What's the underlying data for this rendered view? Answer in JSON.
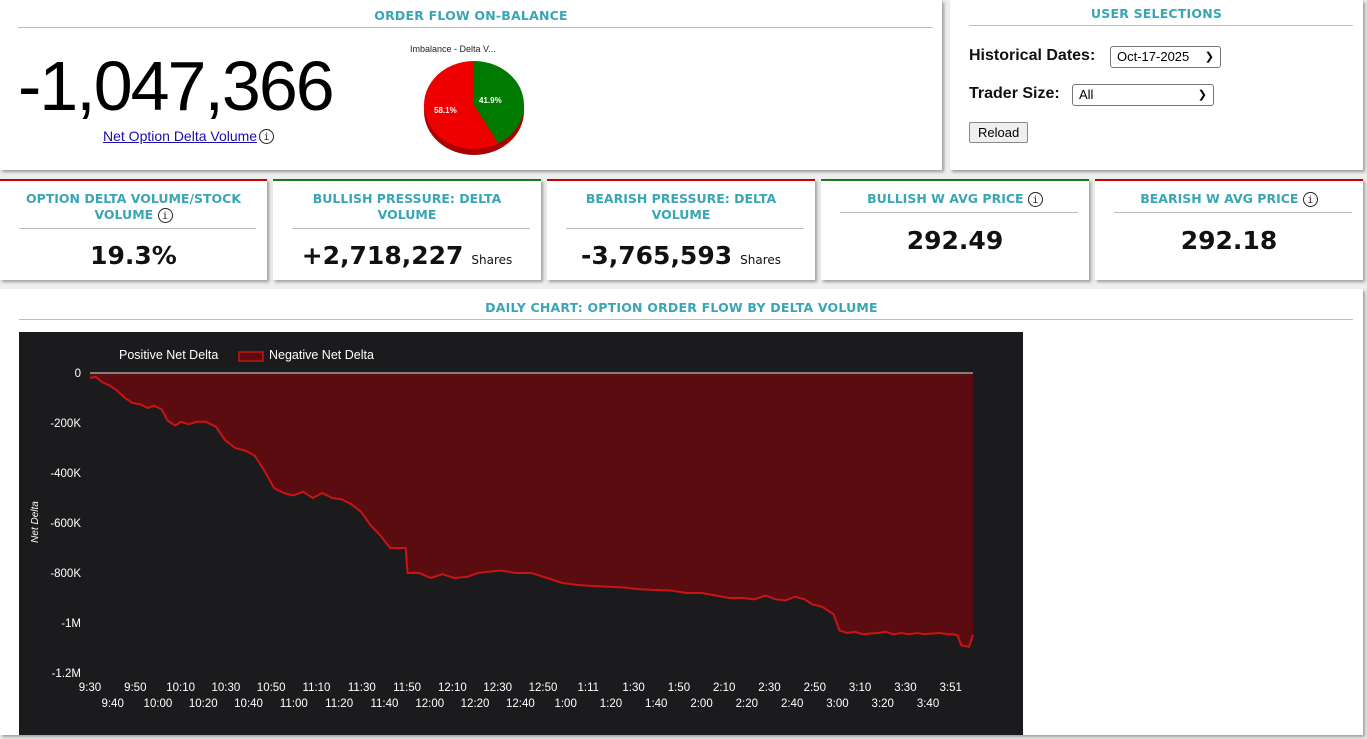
{
  "order_flow": {
    "title": "ORDER FLOW ON-BALANCE",
    "net_value": "-1,047,366",
    "net_label": "Net Option Delta Volume",
    "info_glyph": "i",
    "pie": {
      "title": "Imbalance - Delta V...",
      "slices": [
        {
          "label": "58.1%",
          "value": 58.1,
          "color": "#ee0000"
        },
        {
          "label": "41.9%",
          "value": 41.9,
          "color": "#007a00"
        }
      ]
    }
  },
  "user_selections": {
    "title": "USER SELECTIONS",
    "historical_dates_label": "Historical Dates:",
    "historical_dates_value": "Oct-17-2025",
    "trader_size_label": "Trader Size:",
    "trader_size_value": "All",
    "reload_label": "Reload"
  },
  "cards": [
    {
      "title": "OPTION DELTA VOLUME/STOCK VOLUME",
      "value": "19.3%",
      "unit": "",
      "top_color": "#cc0000",
      "info": true
    },
    {
      "title": "BULLISH PRESSURE: DELTA VOLUME",
      "value": "+2,718,227",
      "unit": "Shares",
      "top_color": "#1a7a1a",
      "info": false
    },
    {
      "title": "BEARISH PRESSURE: DELTA VOLUME",
      "value": "-3,765,593",
      "unit": "Shares",
      "top_color": "#cc0000",
      "info": false
    },
    {
      "title": "BULLISH W AVG PRICE",
      "value": "292.49",
      "unit": "",
      "top_color": "#1a7a1a",
      "info": true
    },
    {
      "title": "BEARISH W AVG PRICE",
      "value": "292.18",
      "unit": "",
      "top_color": "#cc0000",
      "info": true
    }
  ],
  "daily_chart": {
    "title": "DAILY CHART: OPTION ORDER FLOW BY DELTA VOLUME"
  },
  "chart_data": {
    "type": "area",
    "ylabel": "Net Delta",
    "legend": [
      "Positive Net Delta",
      "Negative Net Delta"
    ],
    "legend_placement": "top-left",
    "ylim": [
      -1200000,
      0
    ],
    "y_ticks": [
      "0",
      "-200K",
      "-400K",
      "-600K",
      "-800K",
      "-1M",
      "-1.2M"
    ],
    "x_ticks_row1": [
      "9:30",
      "9:50",
      "10:10",
      "10:30",
      "10:50",
      "11:10",
      "11:30",
      "11:50",
      "12:10",
      "12:30",
      "12:50",
      "1:11",
      "1:30",
      "1:50",
      "2:10",
      "2:30",
      "2:50",
      "3:10",
      "3:30",
      "3:51"
    ],
    "x_ticks_row2": [
      "9:40",
      "10:00",
      "10:20",
      "10:40",
      "11:00",
      "11:20",
      "11:40",
      "12:00",
      "12:20",
      "12:40",
      "1:00",
      "1:20",
      "1:40",
      "2:00",
      "2:20",
      "2:40",
      "3:00",
      "3:20",
      "3:40"
    ],
    "x_range_minutes": [
      0,
      387
    ],
    "series": [
      {
        "name": "Negative Net Delta",
        "color": "#c81414",
        "fill": "#5a0c10",
        "points": [
          [
            0,
            -20000
          ],
          [
            3,
            -15000
          ],
          [
            6,
            -35000
          ],
          [
            10,
            -50000
          ],
          [
            14,
            -70000
          ],
          [
            18,
            -100000
          ],
          [
            22,
            -120000
          ],
          [
            26,
            -125000
          ],
          [
            30,
            -140000
          ],
          [
            33,
            -130000
          ],
          [
            37,
            -145000
          ],
          [
            40,
            -190000
          ],
          [
            44,
            -210000
          ],
          [
            47,
            -195000
          ],
          [
            51,
            -205000
          ],
          [
            55,
            -195000
          ],
          [
            60,
            -195000
          ],
          [
            65,
            -215000
          ],
          [
            70,
            -270000
          ],
          [
            75,
            -300000
          ],
          [
            80,
            -310000
          ],
          [
            85,
            -330000
          ],
          [
            90,
            -390000
          ],
          [
            95,
            -460000
          ],
          [
            100,
            -480000
          ],
          [
            105,
            -490000
          ],
          [
            110,
            -475000
          ],
          [
            115,
            -500000
          ],
          [
            120,
            -480000
          ],
          [
            125,
            -500000
          ],
          [
            130,
            -505000
          ],
          [
            135,
            -525000
          ],
          [
            140,
            -555000
          ],
          [
            145,
            -610000
          ],
          [
            150,
            -650000
          ],
          [
            155,
            -700000
          ],
          [
            160,
            -700000
          ],
          [
            163,
            -700000
          ],
          [
            164,
            -800000
          ],
          [
            170,
            -800000
          ],
          [
            176,
            -820000
          ],
          [
            182,
            -805000
          ],
          [
            188,
            -820000
          ],
          [
            195,
            -815000
          ],
          [
            200,
            -800000
          ],
          [
            206,
            -795000
          ],
          [
            212,
            -790000
          ],
          [
            220,
            -800000
          ],
          [
            228,
            -800000
          ],
          [
            236,
            -820000
          ],
          [
            244,
            -840000
          ],
          [
            252,
            -848000
          ],
          [
            260,
            -852000
          ],
          [
            268,
            -855000
          ],
          [
            276,
            -858000
          ],
          [
            284,
            -865000
          ],
          [
            292,
            -868000
          ],
          [
            300,
            -870000
          ],
          [
            308,
            -880000
          ],
          [
            316,
            -880000
          ],
          [
            323,
            -890000
          ],
          [
            330,
            -900000
          ],
          [
            337,
            -900000
          ],
          [
            343,
            -905000
          ],
          [
            349,
            -890000
          ],
          [
            354,
            -905000
          ],
          [
            359,
            -910000
          ],
          [
            364,
            -895000
          ],
          [
            369,
            -905000
          ],
          [
            373,
            -925000
          ],
          [
            378,
            -935000
          ],
          [
            381,
            -950000
          ],
          [
            384,
            -965000
          ],
          [
            387,
            -1030000
          ],
          [
            391,
            -1040000
          ],
          [
            395,
            -1035000
          ],
          [
            399,
            -1045000
          ],
          [
            403,
            -1042000
          ],
          [
            407,
            -1040000
          ],
          [
            411,
            -1035000
          ],
          [
            415,
            -1045000
          ],
          [
            419,
            -1040000
          ],
          [
            423,
            -1045000
          ],
          [
            427,
            -1040000
          ],
          [
            431,
            -1045000
          ],
          [
            435,
            -1042000
          ],
          [
            439,
            -1040000
          ],
          [
            443,
            -1045000
          ],
          [
            446,
            -1045000
          ],
          [
            448,
            -1050000
          ],
          [
            450,
            -1090000
          ],
          [
            454,
            -1095000
          ],
          [
            456,
            -1047366
          ]
        ]
      }
    ]
  }
}
